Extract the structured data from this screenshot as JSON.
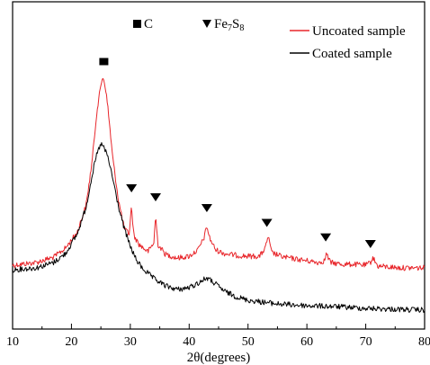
{
  "chart_data": {
    "type": "line",
    "xlabel": "2θ(degrees)",
    "ylabel": "",
    "xlim": [
      10,
      80
    ],
    "xticks": [
      "10",
      "20",
      "30",
      "40",
      "50",
      "60",
      "70",
      "80"
    ],
    "yticks_shown": false,
    "grid": false,
    "legend_position": "top-right",
    "series": [
      {
        "name": "Uncoated sample",
        "color": "#e8262b",
        "x": [
          10,
          14,
          17,
          19,
          21,
          22.5,
          23.5,
          24.3,
          25,
          25.3,
          25.7,
          26.2,
          27,
          28,
          29,
          29.8,
          30.2,
          30.6,
          31.5,
          33,
          34,
          34.3,
          34.7,
          36,
          38,
          40,
          41.5,
          42.5,
          43,
          43.5,
          44.5,
          46,
          48,
          50,
          52,
          53,
          53.4,
          54,
          56,
          58,
          60,
          62,
          63,
          63.3,
          64,
          66,
          68,
          70,
          70.8,
          71.2,
          72,
          74,
          76,
          78,
          80
        ],
        "y": [
          295,
          292,
          286,
          276,
          258,
          228,
          180,
          125,
          95,
          85,
          94,
          120,
          175,
          223,
          255,
          260,
          230,
          262,
          272,
          280,
          270,
          240,
          272,
          283,
          287,
          285,
          278,
          265,
          252,
          265,
          278,
          282,
          284,
          285,
          285,
          275,
          262,
          281,
          286,
          288,
          290,
          292,
          290,
          282,
          292,
          294,
          294,
          295,
          292,
          286,
          296,
          297,
          298,
          298,
          298
        ]
      },
      {
        "name": "Coated sample",
        "color": "#000000",
        "x": [
          10,
          14,
          17,
          19,
          21,
          22.5,
          23.5,
          24.3,
          25,
          25.5,
          26.2,
          27,
          28,
          29,
          30,
          31,
          32,
          34,
          36,
          38,
          40,
          41.5,
          43,
          44.5,
          46,
          48,
          50,
          55,
          60,
          65,
          70,
          75,
          80
        ],
        "y": [
          300,
          298,
          292,
          282,
          260,
          230,
          195,
          172,
          160,
          164,
          175,
          198,
          230,
          255,
          274,
          289,
          298,
          310,
          318,
          322,
          320,
          315,
          309,
          316,
          324,
          330,
          334,
          338,
          340,
          341,
          343,
          344,
          345
        ]
      }
    ],
    "markers": [
      {
        "symbol": "square",
        "label": "C",
        "x": [
          25.5
        ]
      },
      {
        "symbol": "down-triangle",
        "label": "Fe7S8",
        "x": [
          30.2,
          34.3,
          43.0,
          53.2,
          63.2,
          70.8
        ]
      }
    ],
    "y_axis_note": "y values in screen-intensity units (arbitrary, inverted scale 0=top)"
  },
  "legend": {
    "uncoated": "Uncoated sample",
    "coated": "Coated sample",
    "c_label": "C",
    "fe_label_main": "Fe",
    "fe_sub1": "7",
    "fe_mid": "S",
    "fe_sub2": "8"
  }
}
